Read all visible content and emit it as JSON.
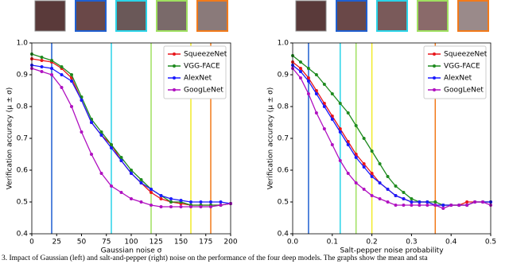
{
  "chart_data": [
    {
      "type": "line",
      "xlabel": "Gaussian noise σ",
      "ylabel": "Verification accuracy (μ ± σ)",
      "x": [
        0,
        10,
        20,
        30,
        40,
        50,
        60,
        70,
        80,
        90,
        100,
        110,
        120,
        130,
        140,
        150,
        160,
        170,
        180,
        190,
        200
      ],
      "series": [
        {
          "name": "SqueezeNet",
          "color": "#e8161b",
          "values": [
            0.95,
            0.945,
            0.94,
            0.92,
            0.89,
            0.82,
            0.75,
            0.71,
            0.68,
            0.63,
            0.59,
            0.56,
            0.53,
            0.51,
            0.5,
            0.495,
            0.49,
            0.49,
            0.49,
            0.49,
            0.495
          ]
        },
        {
          "name": "VGG-FACE",
          "color": "#1e8a1e",
          "values": [
            0.965,
            0.955,
            0.945,
            0.925,
            0.9,
            0.83,
            0.76,
            0.72,
            0.68,
            0.64,
            0.6,
            0.57,
            0.54,
            0.52,
            0.5,
            0.5,
            0.49,
            0.49,
            0.49,
            0.49,
            0.495
          ]
        },
        {
          "name": "AlexNet",
          "color": "#1a1aff",
          "values": [
            0.93,
            0.925,
            0.92,
            0.9,
            0.88,
            0.82,
            0.75,
            0.71,
            0.67,
            0.63,
            0.59,
            0.56,
            0.54,
            0.52,
            0.51,
            0.505,
            0.5,
            0.5,
            0.5,
            0.5,
            0.495
          ]
        },
        {
          "name": "GoogLeNet",
          "color": "#b010c0",
          "values": [
            0.92,
            0.91,
            0.9,
            0.86,
            0.8,
            0.72,
            0.65,
            0.59,
            0.55,
            0.53,
            0.51,
            0.5,
            0.49,
            0.485,
            0.485,
            0.485,
            0.485,
            0.485,
            0.485,
            0.49,
            0.495
          ]
        }
      ],
      "vlines": [
        {
          "x": 20,
          "color": "#1f5fd0"
        },
        {
          "x": 80,
          "color": "#2ad4e8"
        },
        {
          "x": 120,
          "color": "#9fe060"
        },
        {
          "x": 160,
          "color": "#f2ea2a"
        },
        {
          "x": 180,
          "color": "#f27a1a"
        }
      ],
      "xlim": [
        0,
        200
      ],
      "xticks": [
        0,
        25,
        50,
        75,
        100,
        125,
        150,
        175,
        200
      ],
      "ylim": [
        0.4,
        1.0
      ],
      "yticks": [
        0.4,
        0.5,
        0.6,
        0.7,
        0.8,
        0.9,
        {
          "value": 1.0,
          "label": "1.0"
        }
      ],
      "legend": "upper right",
      "grid": false
    },
    {
      "type": "line",
      "xlabel": "Salt-pepper noise probability",
      "ylabel": "Verification accuracy (μ ± σ)",
      "x": [
        0,
        0.02,
        0.04,
        0.06,
        0.08,
        0.1,
        0.12,
        0.14,
        0.16,
        0.18,
        0.2,
        0.22,
        0.24,
        0.26,
        0.28,
        0.3,
        0.32,
        0.34,
        0.36,
        0.38,
        0.4,
        0.42,
        0.44,
        0.46,
        0.48,
        0.5
      ],
      "series": [
        {
          "name": "SqueezeNet",
          "color": "#e8161b",
          "values": [
            0.94,
            0.92,
            0.89,
            0.85,
            0.81,
            0.77,
            0.73,
            0.69,
            0.65,
            0.62,
            0.59,
            0.56,
            0.54,
            0.52,
            0.51,
            0.5,
            0.5,
            0.5,
            0.49,
            0.49,
            0.49,
            0.49,
            0.5,
            0.5,
            0.5,
            0.5
          ]
        },
        {
          "name": "VGG-FACE",
          "color": "#1e8a1e",
          "values": [
            0.96,
            0.94,
            0.92,
            0.9,
            0.87,
            0.84,
            0.81,
            0.78,
            0.74,
            0.7,
            0.66,
            0.62,
            0.58,
            0.55,
            0.53,
            0.51,
            0.5,
            0.5,
            0.5,
            0.49,
            0.49,
            0.49,
            0.49,
            0.5,
            0.5,
            0.5
          ]
        },
        {
          "name": "AlexNet",
          "color": "#1a1aff",
          "values": [
            0.93,
            0.91,
            0.88,
            0.84,
            0.8,
            0.76,
            0.72,
            0.68,
            0.64,
            0.61,
            0.58,
            0.56,
            0.54,
            0.52,
            0.51,
            0.5,
            0.5,
            0.5,
            0.49,
            0.49,
            0.49,
            0.49,
            0.49,
            0.5,
            0.5,
            0.5
          ]
        },
        {
          "name": "GoogLeNet",
          "color": "#b010c0",
          "values": [
            0.92,
            0.89,
            0.84,
            0.78,
            0.73,
            0.68,
            0.63,
            0.59,
            0.56,
            0.54,
            0.52,
            0.51,
            0.5,
            0.49,
            0.49,
            0.49,
            0.49,
            0.49,
            0.49,
            0.48,
            0.49,
            0.49,
            0.49,
            0.5,
            0.5,
            0.49
          ]
        }
      ],
      "vlines": [
        {
          "x": 0.04,
          "color": "#1f5fd0"
        },
        {
          "x": 0.12,
          "color": "#2ad4e8"
        },
        {
          "x": 0.16,
          "color": "#9fe060"
        },
        {
          "x": 0.2,
          "color": "#f2ea2a"
        },
        {
          "x": 0.36,
          "color": "#f27a1a"
        }
      ],
      "xlim": [
        0,
        0.5
      ],
      "xticks": [
        {
          "value": 0,
          "label": "0.0"
        },
        0.1,
        0.2,
        0.3,
        0.4,
        0.5
      ],
      "ylim": [
        0.4,
        1.0
      ],
      "yticks": [
        0.4,
        0.5,
        0.6,
        0.7,
        0.8,
        0.9,
        {
          "value": 1.0,
          "label": "1.0"
        }
      ],
      "legend": "upper right",
      "grid": false
    }
  ],
  "caption": "3.   Impact of Gaussian (left) and salt-and-pepper (right) noise on the performance of the four deep models. The graphs show the mean and sta"
}
